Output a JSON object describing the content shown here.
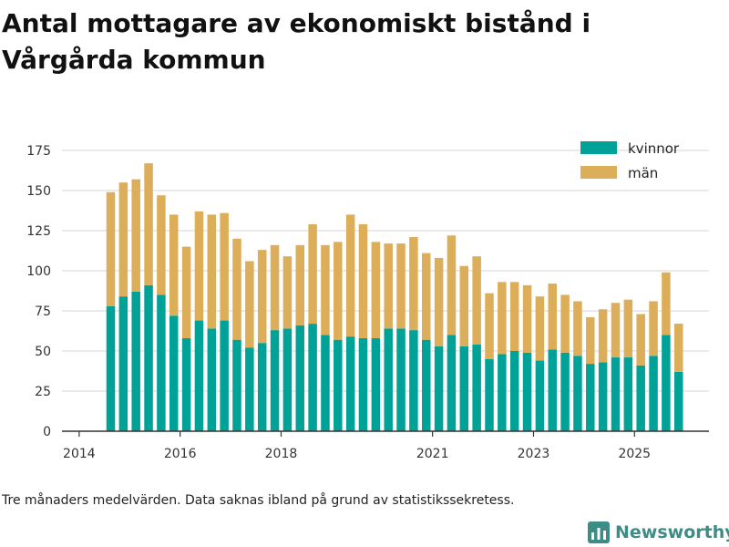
{
  "title": "Antal mottagare av ekonomiskt bistånd i Vårgårda kommun",
  "footnote": "Tre månaders medelvärden. Data saknas ibland på grund av statistikssekretess.",
  "brand": "Newsworthy",
  "colors": {
    "kvinnor": "#00a196",
    "man": "#dcae5a",
    "grid": "#dddddd",
    "axis": "#333333"
  },
  "chart_data": {
    "type": "bar",
    "stacked": true,
    "title": "Antal mottagare av ekonomiskt bistånd i Vårgårda kommun",
    "xlabel": "",
    "ylabel": "",
    "ylim": [
      0,
      175
    ],
    "yticks": [
      0,
      25,
      50,
      75,
      100,
      125,
      150,
      175
    ],
    "xticks": [
      {
        "label": "2014",
        "pos": -2.5
      },
      {
        "label": "2016",
        "pos": 5.5
      },
      {
        "label": "2018",
        "pos": 13.5
      },
      {
        "label": "2021",
        "pos": 25.5
      },
      {
        "label": "2023",
        "pos": 33.5
      },
      {
        "label": "2025",
        "pos": 41.5
      }
    ],
    "legend": {
      "position": "top-right"
    },
    "categories": [
      "1",
      "2",
      "3",
      "4",
      "5",
      "6",
      "7",
      "8",
      "9",
      "10",
      "11",
      "12",
      "13",
      "14",
      "15",
      "16",
      "17",
      "18",
      "19",
      "20",
      "21",
      "22",
      "23",
      "24",
      "25",
      "26",
      "27",
      "28",
      "29",
      "30",
      "31",
      "32",
      "33",
      "34",
      "35",
      "36",
      "37",
      "38",
      "39",
      "40",
      "41",
      "42",
      "43",
      "44",
      "45",
      "46"
    ],
    "series": [
      {
        "name": "kvinnor",
        "values": [
          78,
          84,
          87,
          91,
          85,
          72,
          58,
          69,
          64,
          69,
          57,
          52,
          55,
          63,
          64,
          66,
          67,
          60,
          57,
          59,
          58,
          58,
          64,
          64,
          63,
          57,
          53,
          60,
          53,
          54,
          45,
          48,
          50,
          49,
          44,
          51,
          49,
          47,
          42,
          43,
          46,
          46,
          41,
          47,
          60,
          37
        ]
      },
      {
        "name": "män",
        "values": [
          71,
          71,
          70,
          76,
          62,
          63,
          57,
          68,
          71,
          67,
          63,
          54,
          58,
          53,
          45,
          50,
          62,
          56,
          61,
          76,
          71,
          60,
          53,
          53,
          58,
          54,
          55,
          62,
          50,
          55,
          41,
          45,
          43,
          42,
          40,
          41,
          36,
          34,
          29,
          33,
          34,
          36,
          32,
          34,
          39,
          30
        ]
      }
    ]
  }
}
